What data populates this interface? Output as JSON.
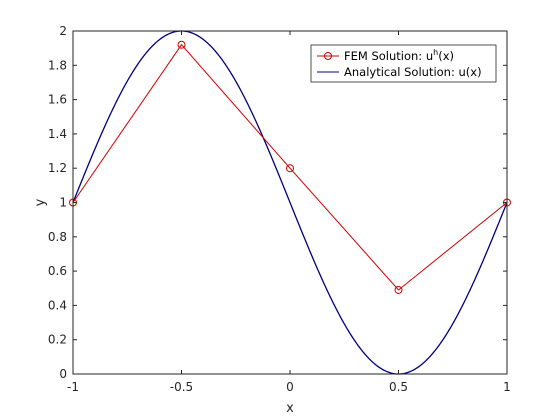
{
  "chart_data": {
    "type": "line",
    "title": "",
    "xlabel": "x",
    "ylabel": "y",
    "xlim": [
      -1,
      1
    ],
    "ylim": [
      0,
      2
    ],
    "xticks": [
      -1,
      -0.5,
      0,
      0.5,
      1
    ],
    "xtick_labels": [
      "-1",
      "-0.5",
      "0",
      "0.5",
      "1"
    ],
    "yticks": [
      0,
      0.2,
      0.4,
      0.6,
      0.8,
      1,
      1.2,
      1.4,
      1.6,
      1.8,
      2
    ],
    "ytick_labels": [
      "0",
      "0.2",
      "0.4",
      "0.6",
      "0.8",
      "1",
      "1.2",
      "1.4",
      "1.6",
      "1.8",
      "2"
    ],
    "grid": false,
    "legend_position": "top-right",
    "legend": {
      "fem_label": "FEM Solution: u",
      "fem_label_sup": "h",
      "fem_label_tail": "(x)",
      "analytical_label": "Analytical Solution: u(x)"
    },
    "series": [
      {
        "name": "FEM Solution: u^h(x)",
        "color": "#cc0000",
        "marker": "circle",
        "x": [
          -1,
          -0.5,
          0,
          0.5,
          1
        ],
        "y": [
          1.0,
          1.92,
          1.2,
          0.49,
          1.0
        ]
      },
      {
        "name": "Analytical Solution: u(x)",
        "color": "#00007f",
        "marker": "none",
        "function": "1 - sin(pi*x)",
        "x_range": [
          -1,
          1
        ]
      }
    ]
  }
}
